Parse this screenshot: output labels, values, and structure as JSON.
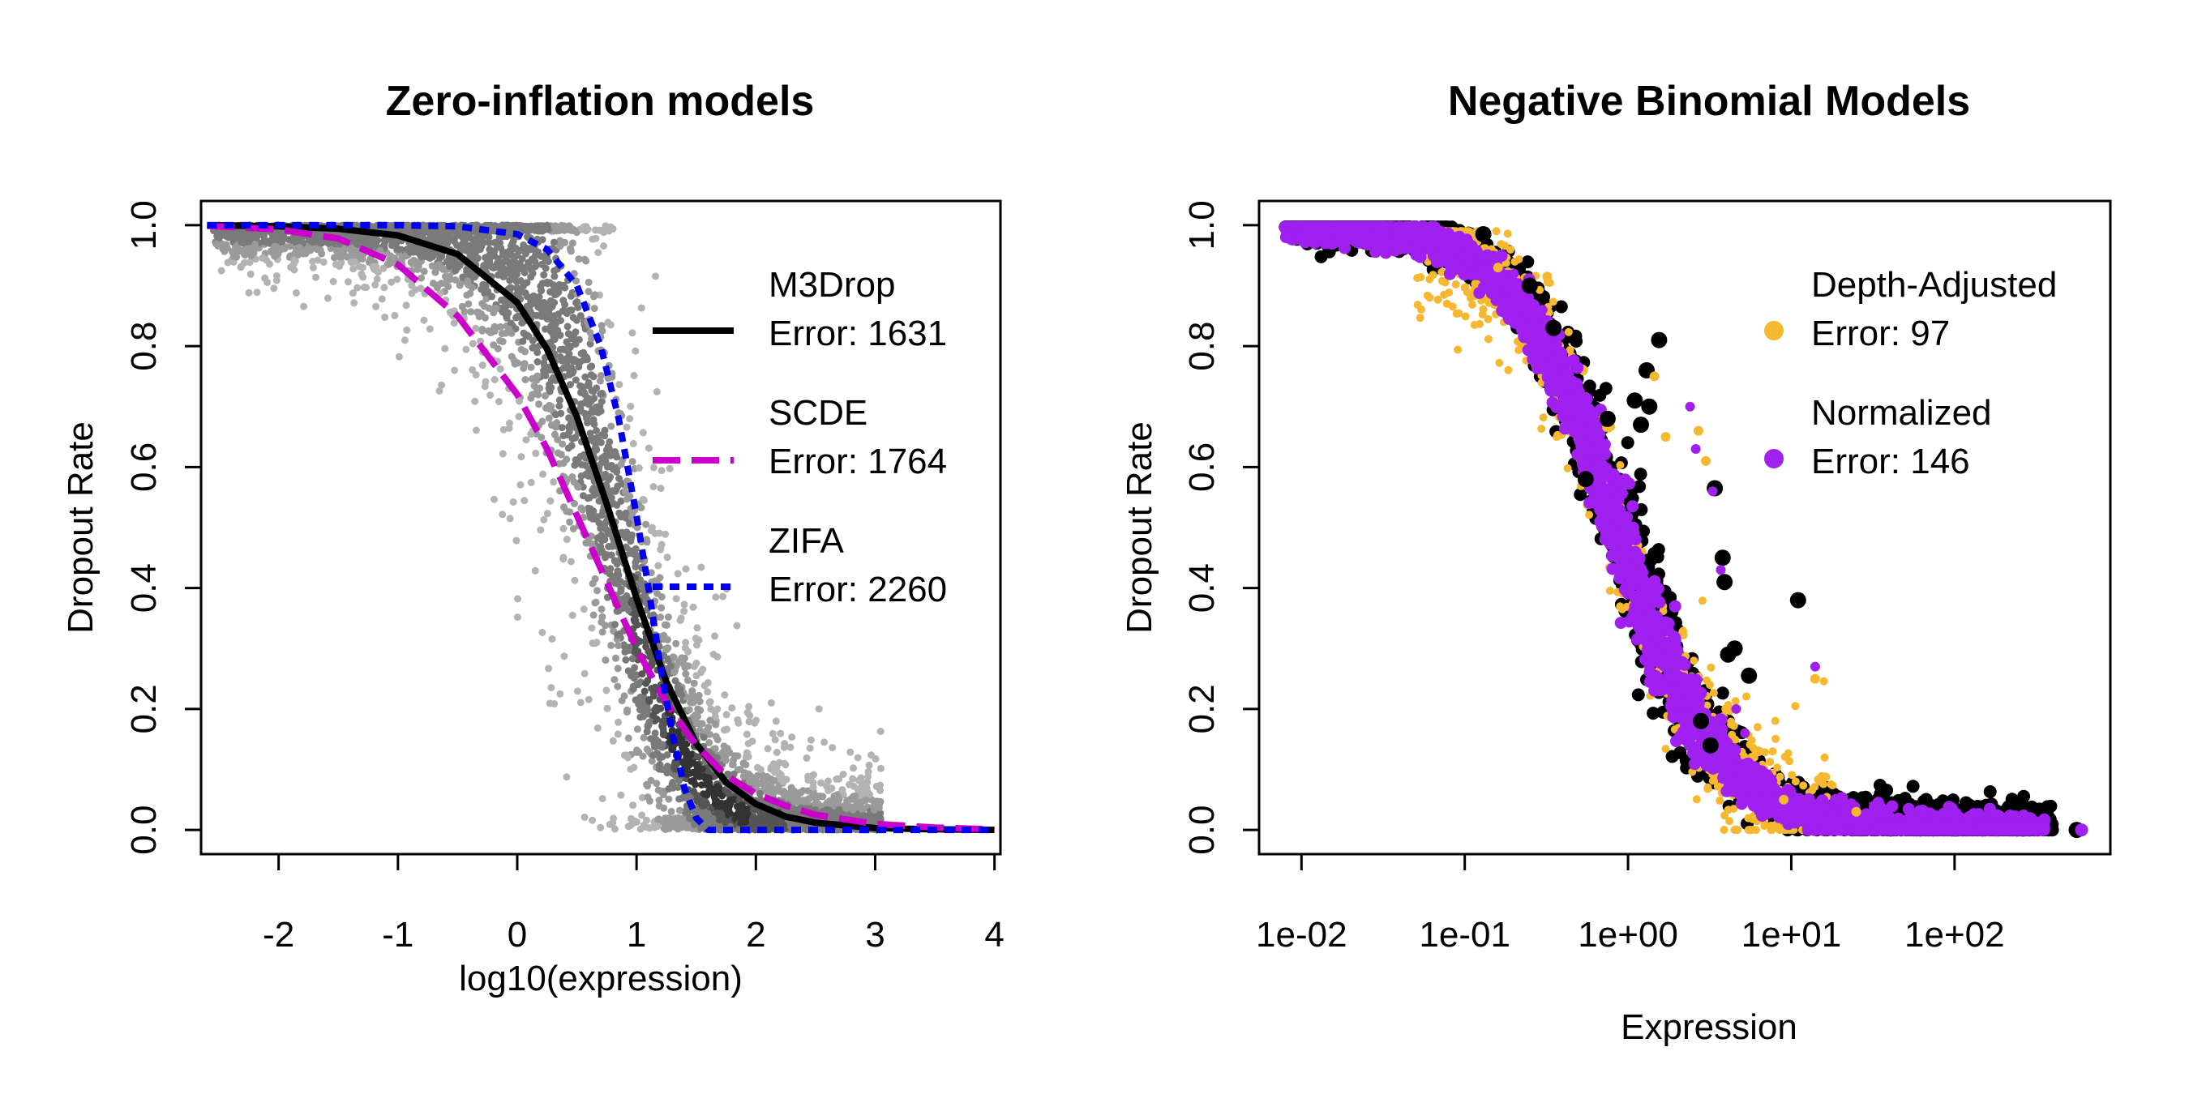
{
  "chart_data": [
    {
      "type": "scatter",
      "title": "Zero-inflation models",
      "xlabel": "log10(expression)",
      "ylabel": "Dropout Rate",
      "xlim": [
        -2.65,
        4.05
      ],
      "ylim": [
        -0.04,
        1.04
      ],
      "x_ticks": [
        -2,
        -1,
        0,
        1,
        2,
        3,
        4
      ],
      "x_tick_labels": [
        "-2",
        "-1",
        "0",
        "1",
        "2",
        "3",
        "4"
      ],
      "y_ticks": [
        0,
        0.2,
        0.4,
        0.6,
        0.8,
        1
      ],
      "y_tick_labels": [
        "0.0",
        "0.2",
        "0.4",
        "0.6",
        "0.8",
        "1.0"
      ],
      "point_color": "#b3b3b3",
      "point_density_colors": [
        "#b3b3b3",
        "#9a9a9a",
        "#7a7a7a",
        "#555555",
        "#333333"
      ],
      "scatter_note": "density-shaded gene cloud",
      "series": [
        {
          "model": "M3Drop",
          "name": "M3Drop",
          "error_label": "Error: 1631",
          "color": "#000000",
          "line": "solid",
          "x": [
            -2.6,
            -2.0,
            -1.5,
            -1.0,
            -0.5,
            0.0,
            0.25,
            0.5,
            0.75,
            1.0,
            1.25,
            1.5,
            1.75,
            2.0,
            2.25,
            2.5,
            3.0,
            3.5,
            4.0
          ],
          "y": [
            1.0,
            0.998,
            0.994,
            0.983,
            0.952,
            0.872,
            0.795,
            0.683,
            0.539,
            0.383,
            0.245,
            0.143,
            0.079,
            0.043,
            0.022,
            0.012,
            0.003,
            0.001,
            0.0
          ]
        },
        {
          "model": "SCDE",
          "name": "SCDE",
          "error_label": "Error: 1764",
          "color": "#cc00cc",
          "line": "dashed",
          "x": [
            -2.6,
            -2.0,
            -1.5,
            -1.0,
            -0.5,
            0.0,
            0.25,
            0.5,
            0.75,
            1.0,
            1.25,
            1.5,
            1.75,
            2.0,
            2.25,
            2.5,
            3.0,
            3.5,
            4.0
          ],
          "y": [
            0.999,
            0.993,
            0.978,
            0.935,
            0.85,
            0.72,
            0.63,
            0.52,
            0.41,
            0.3,
            0.21,
            0.14,
            0.09,
            0.06,
            0.04,
            0.025,
            0.01,
            0.004,
            0.001
          ]
        },
        {
          "model": "ZIFA",
          "name": "ZIFA",
          "error_label": "Error: 2260",
          "color": "#0000ee",
          "line": "dotted",
          "x": [
            -2.6,
            -1.0,
            -0.5,
            0.0,
            0.25,
            0.5,
            0.7,
            0.85,
            1.0,
            1.1,
            1.2,
            1.3,
            1.4,
            1.5,
            1.6,
            2.0,
            3.0,
            4.0
          ],
          "y": [
            1.0,
            1.0,
            0.998,
            0.985,
            0.96,
            0.9,
            0.8,
            0.68,
            0.52,
            0.4,
            0.27,
            0.16,
            0.07,
            0.02,
            0.0,
            0.0,
            0.0,
            0.0
          ]
        }
      ],
      "legend_position": "right"
    },
    {
      "type": "scatter",
      "title": "Negative Binomial Models",
      "xlabel": "Expression",
      "ylabel": "Dropout Rate",
      "x_scale": "log10",
      "xlim": [
        0.0055,
        900
      ],
      "ylim": [
        -0.04,
        1.04
      ],
      "x_ticks": [
        0.01,
        0.1,
        1,
        10,
        100
      ],
      "x_tick_labels": [
        "1e-02",
        "1e-01",
        "1e+00",
        "1e+01",
        "1e+02"
      ],
      "y_ticks": [
        0,
        0.2,
        0.4,
        0.6,
        0.8,
        1
      ],
      "y_tick_labels": [
        "0.0",
        "0.2",
        "0.4",
        "0.6",
        "0.8",
        "1.0"
      ],
      "observed_color": "#000000",
      "series": [
        {
          "model": "Depth-Adjusted",
          "name": "Depth-Adjusted",
          "error_label": "Error: 97",
          "color": "#f5b82e",
          "marker": "small-point"
        },
        {
          "model": "Normalized",
          "name": "Normalized",
          "error_label": "Error: 146",
          "color": "#a020f0",
          "marker": "point"
        }
      ],
      "legend_position": "top-right"
    }
  ]
}
